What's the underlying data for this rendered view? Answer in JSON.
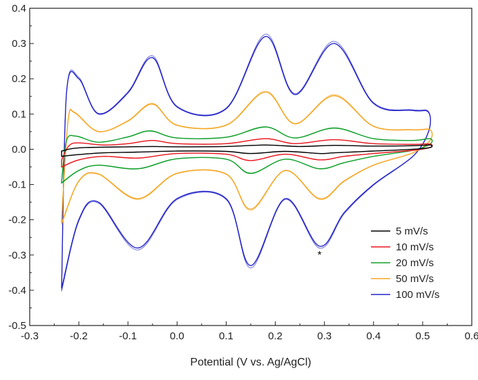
{
  "chart_data": {
    "type": "line",
    "title": "",
    "xlabel": "Potential (V vs. Ag/AgCl)",
    "ylabel": "",
    "xlim": [
      -0.3,
      0.6
    ],
    "ylim": [
      -0.5,
      0.4
    ],
    "x_ticks": [
      "-0.3",
      "-0.2",
      "-0.1",
      "0.0",
      "0.1",
      "0.2",
      "0.3",
      "0.4",
      "0.5",
      "0.6"
    ],
    "y_ticks": [
      "0.4",
      "0.3",
      "0.2",
      "0.1",
      "0.0",
      "-0.1",
      "-0.2",
      "-0.3",
      "-0.4",
      "-0.5"
    ],
    "grid": false,
    "legend_position": "bottom-right",
    "annotation": "*",
    "annotation_at": [
      0.29,
      -0.31
    ],
    "x_range_scanned": [
      -0.235,
      0.515
    ],
    "series": [
      {
        "name": "5 mV/s",
        "color": "#000000",
        "anodic": [
          [
            -0.235,
            -0.005
          ],
          [
            -0.2,
            0.004
          ],
          [
            -0.1,
            0.007
          ],
          [
            -0.05,
            0.008
          ],
          [
            0.0,
            0.007
          ],
          [
            0.1,
            0.008
          ],
          [
            0.18,
            0.012
          ],
          [
            0.25,
            0.008
          ],
          [
            0.32,
            0.011
          ],
          [
            0.4,
            0.009
          ],
          [
            0.48,
            0.01
          ],
          [
            0.515,
            0.012
          ]
        ],
        "cathodic": [
          [
            0.515,
            0.005
          ],
          [
            0.48,
            0.0
          ],
          [
            0.4,
            -0.005
          ],
          [
            0.32,
            -0.01
          ],
          [
            0.29,
            -0.012
          ],
          [
            0.22,
            -0.006
          ],
          [
            0.15,
            -0.012
          ],
          [
            0.1,
            -0.006
          ],
          [
            0.0,
            -0.005
          ],
          [
            -0.08,
            -0.008
          ],
          [
            -0.15,
            -0.01
          ],
          [
            -0.2,
            -0.015
          ],
          [
            -0.235,
            -0.02
          ]
        ]
      },
      {
        "name": "10 mV/s",
        "color": "#e8161d",
        "anodic": [
          [
            -0.235,
            -0.03
          ],
          [
            -0.22,
            0.01
          ],
          [
            -0.2,
            0.018
          ],
          [
            -0.15,
            0.012
          ],
          [
            -0.1,
            0.016
          ],
          [
            -0.05,
            0.025
          ],
          [
            0.0,
            0.016
          ],
          [
            0.1,
            0.016
          ],
          [
            0.18,
            0.03
          ],
          [
            0.24,
            0.016
          ],
          [
            0.32,
            0.027
          ],
          [
            0.4,
            0.016
          ],
          [
            0.48,
            0.014
          ],
          [
            0.515,
            0.015
          ]
        ],
        "cathodic": [
          [
            0.515,
            0.005
          ],
          [
            0.48,
            -0.003
          ],
          [
            0.4,
            -0.012
          ],
          [
            0.34,
            -0.02
          ],
          [
            0.29,
            -0.03
          ],
          [
            0.22,
            -0.014
          ],
          [
            0.15,
            -0.032
          ],
          [
            0.1,
            -0.014
          ],
          [
            0.0,
            -0.012
          ],
          [
            -0.08,
            -0.025
          ],
          [
            -0.15,
            -0.02
          ],
          [
            -0.2,
            -0.03
          ],
          [
            -0.235,
            -0.05
          ]
        ]
      },
      {
        "name": "20 mV/s",
        "color": "#10a02a",
        "anodic": [
          [
            -0.235,
            -0.09
          ],
          [
            -0.225,
            0.025
          ],
          [
            -0.205,
            0.037
          ],
          [
            -0.16,
            0.02
          ],
          [
            -0.1,
            0.035
          ],
          [
            -0.055,
            0.052
          ],
          [
            0.0,
            0.032
          ],
          [
            0.1,
            0.034
          ],
          [
            0.18,
            0.063
          ],
          [
            0.24,
            0.032
          ],
          [
            0.32,
            0.06
          ],
          [
            0.4,
            0.03
          ],
          [
            0.48,
            0.025
          ],
          [
            0.515,
            0.03
          ]
        ],
        "cathodic": [
          [
            0.515,
            0.015
          ],
          [
            0.48,
            -0.003
          ],
          [
            0.4,
            -0.02
          ],
          [
            0.34,
            -0.038
          ],
          [
            0.29,
            -0.055
          ],
          [
            0.22,
            -0.028
          ],
          [
            0.15,
            -0.068
          ],
          [
            0.1,
            -0.028
          ],
          [
            0.0,
            -0.027
          ],
          [
            -0.08,
            -0.055
          ],
          [
            -0.16,
            -0.045
          ],
          [
            -0.2,
            -0.06
          ],
          [
            -0.235,
            -0.095
          ]
        ]
      },
      {
        "name": "50 mV/s",
        "color": "#f5a623",
        "anodic": [
          [
            -0.235,
            -0.2
          ],
          [
            -0.222,
            0.08
          ],
          [
            -0.208,
            0.103
          ],
          [
            -0.16,
            0.05
          ],
          [
            -0.1,
            0.08
          ],
          [
            -0.05,
            0.128
          ],
          [
            0.0,
            0.068
          ],
          [
            0.1,
            0.068
          ],
          [
            0.18,
            0.162
          ],
          [
            0.24,
            0.072
          ],
          [
            0.32,
            0.152
          ],
          [
            0.4,
            0.065
          ],
          [
            0.48,
            0.055
          ],
          [
            0.515,
            0.055
          ]
        ],
        "cathodic": [
          [
            0.515,
            0.025
          ],
          [
            0.48,
            -0.01
          ],
          [
            0.4,
            -0.045
          ],
          [
            0.34,
            -0.09
          ],
          [
            0.29,
            -0.14
          ],
          [
            0.22,
            -0.06
          ],
          [
            0.15,
            -0.17
          ],
          [
            0.1,
            -0.07
          ],
          [
            0.0,
            -0.068
          ],
          [
            -0.08,
            -0.14
          ],
          [
            -0.16,
            -0.07
          ],
          [
            -0.2,
            -0.09
          ],
          [
            -0.235,
            -0.21
          ]
        ]
      },
      {
        "name": "100 mV/s",
        "color": "#2323c8",
        "anodic": [
          [
            -0.235,
            -0.39
          ],
          [
            -0.225,
            0.16
          ],
          [
            -0.2,
            0.2
          ],
          [
            -0.16,
            0.1
          ],
          [
            -0.1,
            0.16
          ],
          [
            -0.05,
            0.26
          ],
          [
            0.0,
            0.12
          ],
          [
            0.1,
            0.115
          ],
          [
            0.18,
            0.32
          ],
          [
            0.24,
            0.155
          ],
          [
            0.32,
            0.3
          ],
          [
            0.4,
            0.13
          ],
          [
            0.48,
            0.11
          ],
          [
            0.512,
            0.105
          ]
        ],
        "cathodic": [
          [
            0.512,
            0.05
          ],
          [
            0.48,
            -0.02
          ],
          [
            0.4,
            -0.1
          ],
          [
            0.34,
            -0.18
          ],
          [
            0.29,
            -0.275
          ],
          [
            0.22,
            -0.14
          ],
          [
            0.15,
            -0.33
          ],
          [
            0.1,
            -0.14
          ],
          [
            0.0,
            -0.14
          ],
          [
            -0.08,
            -0.28
          ],
          [
            -0.16,
            -0.15
          ],
          [
            -0.2,
            -0.2
          ],
          [
            -0.235,
            -0.395
          ]
        ]
      }
    ]
  }
}
